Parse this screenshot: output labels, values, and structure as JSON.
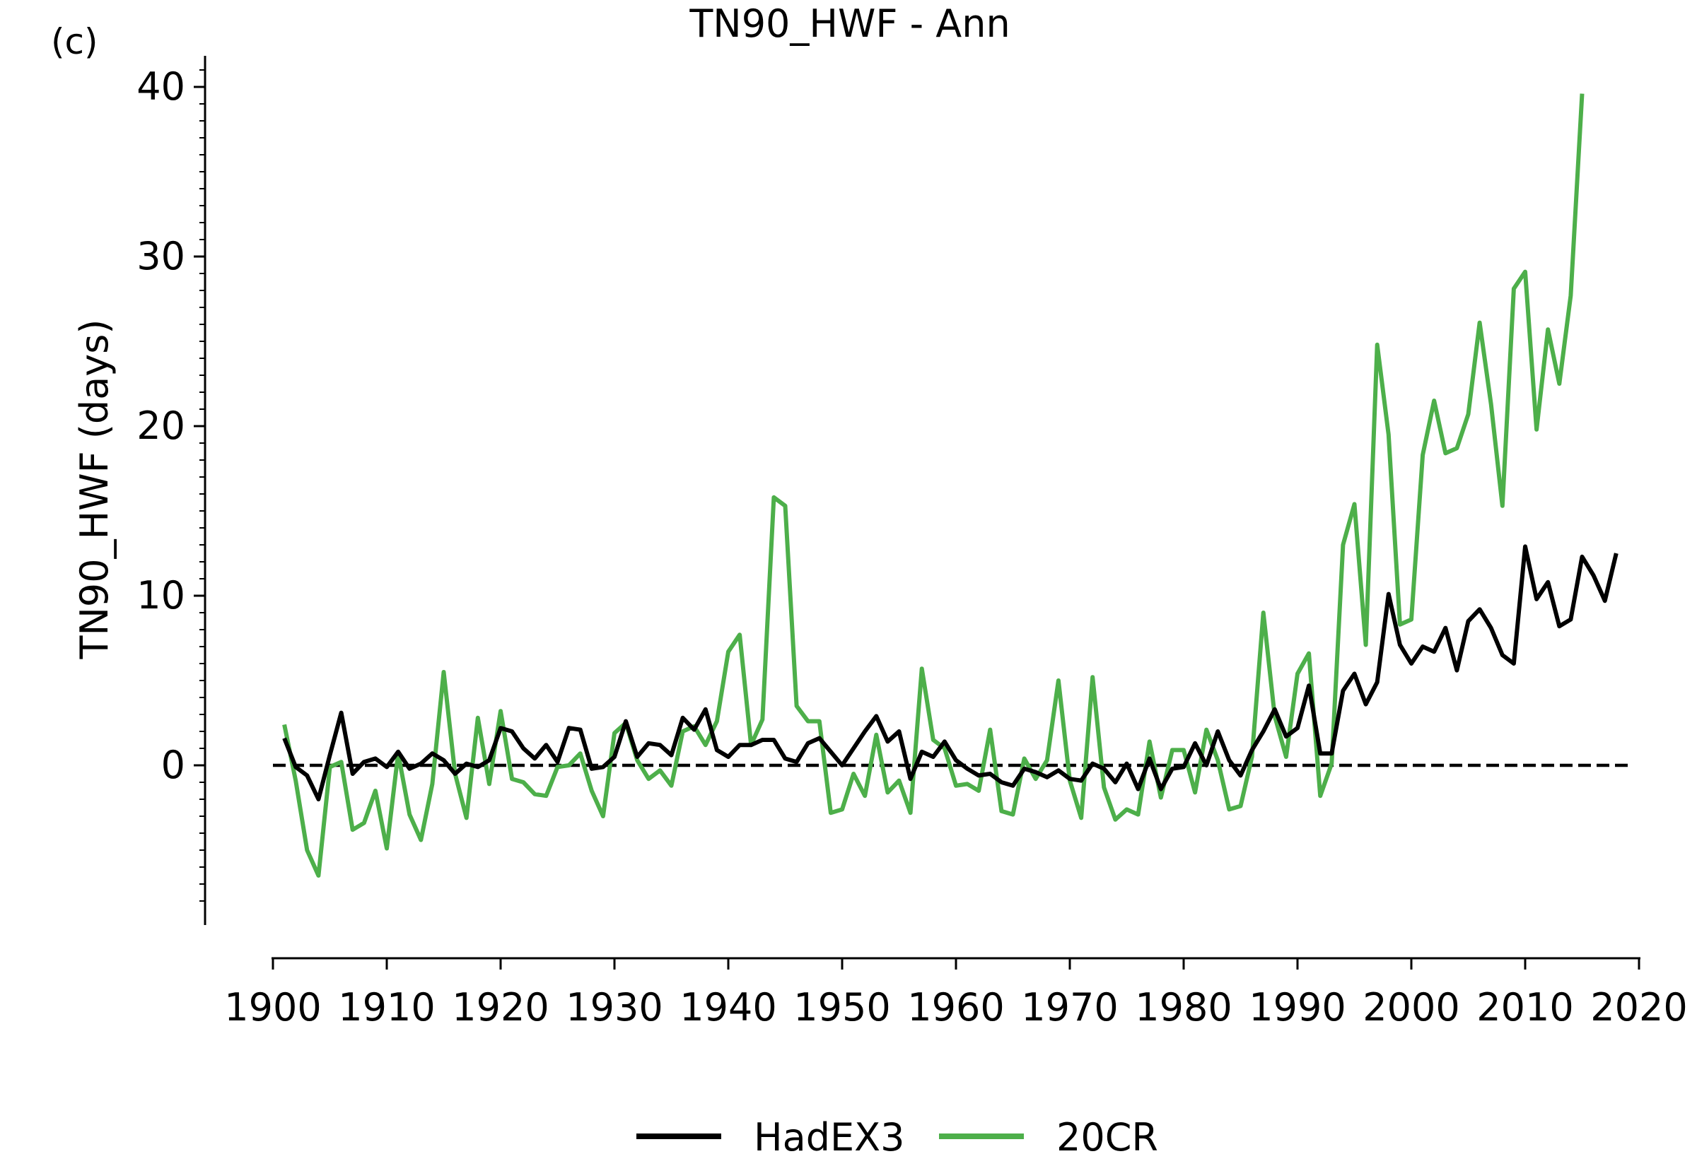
{
  "chart_data": {
    "type": "line",
    "panel_label": "(c)",
    "title": "TN90_HWF - Ann",
    "ylabel": "TN90_HWF (days)",
    "xlabel": "",
    "xlim": [
      1900,
      2020
    ],
    "ylim": [
      -9,
      42
    ],
    "x_ticks": [
      "1900",
      "1910",
      "1920",
      "1930",
      "1940",
      "1950",
      "1960",
      "1970",
      "1980",
      "1990",
      "2000",
      "2010",
      "2020"
    ],
    "y_ticks": [
      "0",
      "10",
      "20",
      "30",
      "40"
    ],
    "zero_line": true,
    "grid": false,
    "legend_position": "bottom-center",
    "series": [
      {
        "name": "HadEX3",
        "color": "#000000",
        "x": [
          1901,
          1902,
          1903,
          1904,
          1905,
          1906,
          1907,
          1908,
          1909,
          1910,
          1911,
          1912,
          1913,
          1914,
          1915,
          1916,
          1917,
          1918,
          1919,
          1920,
          1921,
          1922,
          1923,
          1924,
          1925,
          1926,
          1927,
          1928,
          1929,
          1930,
          1931,
          1932,
          1933,
          1934,
          1935,
          1936,
          1937,
          1938,
          1939,
          1940,
          1941,
          1942,
          1943,
          1944,
          1945,
          1946,
          1947,
          1948,
          1949,
          1950,
          1951,
          1952,
          1953,
          1954,
          1955,
          1956,
          1957,
          1958,
          1959,
          1960,
          1961,
          1962,
          1963,
          1964,
          1965,
          1966,
          1967,
          1968,
          1969,
          1970,
          1971,
          1972,
          1973,
          1974,
          1975,
          1976,
          1977,
          1978,
          1979,
          1980,
          1981,
          1982,
          1983,
          1984,
          1985,
          1986,
          1987,
          1988,
          1989,
          1990,
          1991,
          1992,
          1993,
          1994,
          1995,
          1996,
          1997,
          1998,
          1999,
          2000,
          2001,
          2002,
          2003,
          2004,
          2005,
          2006,
          2007,
          2008,
          2009,
          2010,
          2011,
          2012,
          2013,
          2014,
          2015,
          2016,
          2017,
          2018
        ],
        "y": [
          1.6,
          -0.1,
          -0.6,
          -2.0,
          0.6,
          3.1,
          -0.5,
          0.2,
          0.4,
          -0.1,
          0.8,
          -0.2,
          0.1,
          0.7,
          0.3,
          -0.5,
          0.1,
          -0.1,
          0.3,
          2.2,
          2.0,
          1.0,
          0.4,
          1.2,
          0.2,
          2.2,
          2.1,
          -0.2,
          -0.1,
          0.5,
          2.6,
          0.5,
          1.3,
          1.2,
          0.6,
          2.8,
          2.1,
          3.3,
          0.9,
          0.5,
          1.2,
          1.2,
          1.5,
          1.5,
          0.4,
          0.2,
          1.3,
          1.6,
          0.8,
          0.0,
          1.0,
          2.0,
          2.9,
          1.4,
          2.0,
          -0.8,
          0.8,
          0.5,
          1.4,
          0.3,
          -0.2,
          -0.6,
          -0.5,
          -1.0,
          -1.2,
          -0.2,
          -0.4,
          -0.7,
          -0.3,
          -0.8,
          -0.9,
          0.1,
          -0.2,
          -1.0,
          0.1,
          -1.4,
          0.4,
          -1.4,
          -0.2,
          -0.1,
          1.3,
          0.0,
          2.0,
          0.3,
          -0.6,
          0.9,
          2.0,
          3.3,
          1.7,
          2.2,
          4.7,
          0.7,
          0.7,
          4.4,
          5.4,
          3.6,
          4.9,
          10.1,
          7.1,
          6.0,
          7.0,
          6.7,
          8.1,
          5.6,
          8.5,
          9.2,
          8.1,
          6.5,
          6.0,
          12.9,
          9.8,
          10.8,
          8.2,
          8.6,
          12.3,
          11.2,
          9.7,
          12.5
        ]
      },
      {
        "name": "20CR",
        "color": "#4daf4a",
        "x": [
          1901,
          1902,
          1903,
          1904,
          1905,
          1906,
          1907,
          1908,
          1909,
          1910,
          1911,
          1912,
          1913,
          1914,
          1915,
          1916,
          1917,
          1918,
          1919,
          1920,
          1921,
          1922,
          1923,
          1924,
          1925,
          1926,
          1927,
          1928,
          1929,
          1930,
          1931,
          1932,
          1933,
          1934,
          1935,
          1936,
          1937,
          1938,
          1939,
          1940,
          1941,
          1942,
          1943,
          1944,
          1945,
          1946,
          1947,
          1948,
          1949,
          1950,
          1951,
          1952,
          1953,
          1954,
          1955,
          1956,
          1957,
          1958,
          1959,
          1960,
          1961,
          1962,
          1963,
          1964,
          1965,
          1966,
          1967,
          1968,
          1969,
          1970,
          1971,
          1972,
          1973,
          1974,
          1975,
          1976,
          1977,
          1978,
          1979,
          1980,
          1981,
          1982,
          1983,
          1984,
          1985,
          1986,
          1987,
          1988,
          1989,
          1990,
          1991,
          1992,
          1993,
          1994,
          1995,
          1996,
          1997,
          1998,
          1999,
          2000,
          2001,
          2002,
          2003,
          2004,
          2005,
          2006,
          2007,
          2008,
          2009,
          2010,
          2011,
          2012,
          2013,
          2014,
          2015
        ],
        "y": [
          2.4,
          -0.9,
          -5.0,
          -6.5,
          -0.1,
          0.2,
          -3.8,
          -3.4,
          -1.5,
          -4.9,
          0.7,
          -2.9,
          -4.4,
          -1.1,
          5.5,
          -0.5,
          -3.1,
          2.8,
          -1.1,
          3.2,
          -0.8,
          -1.0,
          -1.7,
          -1.8,
          -0.1,
          0.0,
          0.7,
          -1.5,
          -3.0,
          1.9,
          2.5,
          0.3,
          -0.8,
          -0.3,
          -1.2,
          2.0,
          2.3,
          1.2,
          2.6,
          6.7,
          7.7,
          1.2,
          2.7,
          15.8,
          15.3,
          3.5,
          2.6,
          2.6,
          -2.8,
          -2.6,
          -0.5,
          -1.8,
          1.8,
          -1.6,
          -0.9,
          -2.8,
          5.7,
          1.5,
          1.0,
          -1.2,
          -1.1,
          -1.5,
          2.1,
          -2.7,
          -2.9,
          0.4,
          -0.8,
          0.3,
          5.0,
          -0.9,
          -3.1,
          5.2,
          -1.3,
          -3.2,
          -2.6,
          -2.9,
          1.4,
          -1.9,
          0.9,
          0.9,
          -1.6,
          2.1,
          0.3,
          -2.6,
          -2.4,
          0.5,
          9.0,
          2.9,
          0.5,
          5.4,
          6.6,
          -1.8,
          0.1,
          13.0,
          15.4,
          7.1,
          24.8,
          19.5,
          8.3,
          8.6,
          18.3,
          21.5,
          18.4,
          18.7,
          20.7,
          26.1,
          21.3,
          15.3,
          28.1,
          29.1,
          19.8,
          25.7,
          22.5,
          27.7,
          39.6
        ]
      }
    ]
  }
}
